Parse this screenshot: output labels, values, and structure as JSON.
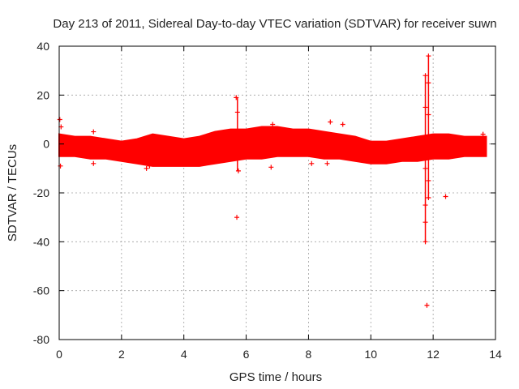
{
  "chart_data": {
    "type": "scatter",
    "title": "Day 213 of 2011, Sidereal Day-to-day VTEC variation (SDTVAR) for receiver suwn",
    "xlabel": "GPS time / hours",
    "ylabel": "SDTVAR / TECUs",
    "xlim": [
      0,
      14
    ],
    "ylim": [
      -80,
      40
    ],
    "xticks": [
      0,
      2,
      4,
      6,
      8,
      10,
      12,
      14
    ],
    "yticks": [
      -80,
      -60,
      -40,
      -20,
      0,
      20,
      40
    ],
    "grid": true,
    "marker": "+",
    "color": "#ff0000",
    "band": {
      "description": "dense point cloud",
      "x": [
        0,
        0.5,
        1,
        1.5,
        2,
        2.5,
        3,
        3.5,
        4,
        4.5,
        5,
        5.5,
        6,
        6.5,
        7,
        7.5,
        8,
        8.5,
        9,
        9.5,
        10,
        10.5,
        11,
        11.5,
        12,
        12.5,
        13,
        13.5,
        13.7
      ],
      "upper": [
        4,
        3,
        3,
        2,
        1,
        2,
        4,
        3,
        2,
        3,
        5,
        6,
        6,
        7,
        7,
        6,
        6,
        5,
        4,
        3,
        1,
        1,
        2,
        3,
        4,
        4,
        3,
        3,
        3
      ],
      "lower": [
        -5,
        -5,
        -6,
        -6,
        -7,
        -8,
        -9,
        -9,
        -9,
        -9,
        -8,
        -7,
        -6,
        -6,
        -5,
        -5,
        -5,
        -6,
        -6,
        -7,
        -8,
        -8,
        -7,
        -7,
        -6,
        -6,
        -5,
        -5,
        -5
      ]
    },
    "outliers": [
      {
        "x": 0.02,
        "y": 10
      },
      {
        "x": 0.04,
        "y": -9
      },
      {
        "x": 0.06,
        "y": 7
      },
      {
        "x": 1.1,
        "y": 5
      },
      {
        "x": 1.1,
        "y": -8
      },
      {
        "x": 2.8,
        "y": -10
      },
      {
        "x": 2.9,
        "y": -9
      },
      {
        "x": 5.68,
        "y": 19
      },
      {
        "x": 5.72,
        "y": 13
      },
      {
        "x": 5.75,
        "y": -11
      },
      {
        "x": 5.7,
        "y": -30
      },
      {
        "x": 6.8,
        "y": -9.5
      },
      {
        "x": 6.85,
        "y": 8
      },
      {
        "x": 8.1,
        "y": -8
      },
      {
        "x": 8.7,
        "y": 9
      },
      {
        "x": 8.6,
        "y": -8
      },
      {
        "x": 9.1,
        "y": 8
      },
      {
        "x": 11.75,
        "y": 28
      },
      {
        "x": 11.75,
        "y": 15
      },
      {
        "x": 11.75,
        "y": -10
      },
      {
        "x": 11.75,
        "y": -25
      },
      {
        "x": 11.75,
        "y": -32
      },
      {
        "x": 11.75,
        "y": -40
      },
      {
        "x": 11.85,
        "y": 36
      },
      {
        "x": 11.85,
        "y": 25
      },
      {
        "x": 11.85,
        "y": 12
      },
      {
        "x": 11.85,
        "y": -15
      },
      {
        "x": 11.85,
        "y": -22
      },
      {
        "x": 11.8,
        "y": -66
      },
      {
        "x": 12.4,
        "y": -21.5
      },
      {
        "x": 13.6,
        "y": 4
      }
    ],
    "spikes": [
      {
        "x": 11.75,
        "y_from": -40,
        "y_to": 28
      },
      {
        "x": 11.85,
        "y_from": -22,
        "y_to": 36
      },
      {
        "x": 5.72,
        "y_from": -11,
        "y_to": 19
      }
    ]
  }
}
